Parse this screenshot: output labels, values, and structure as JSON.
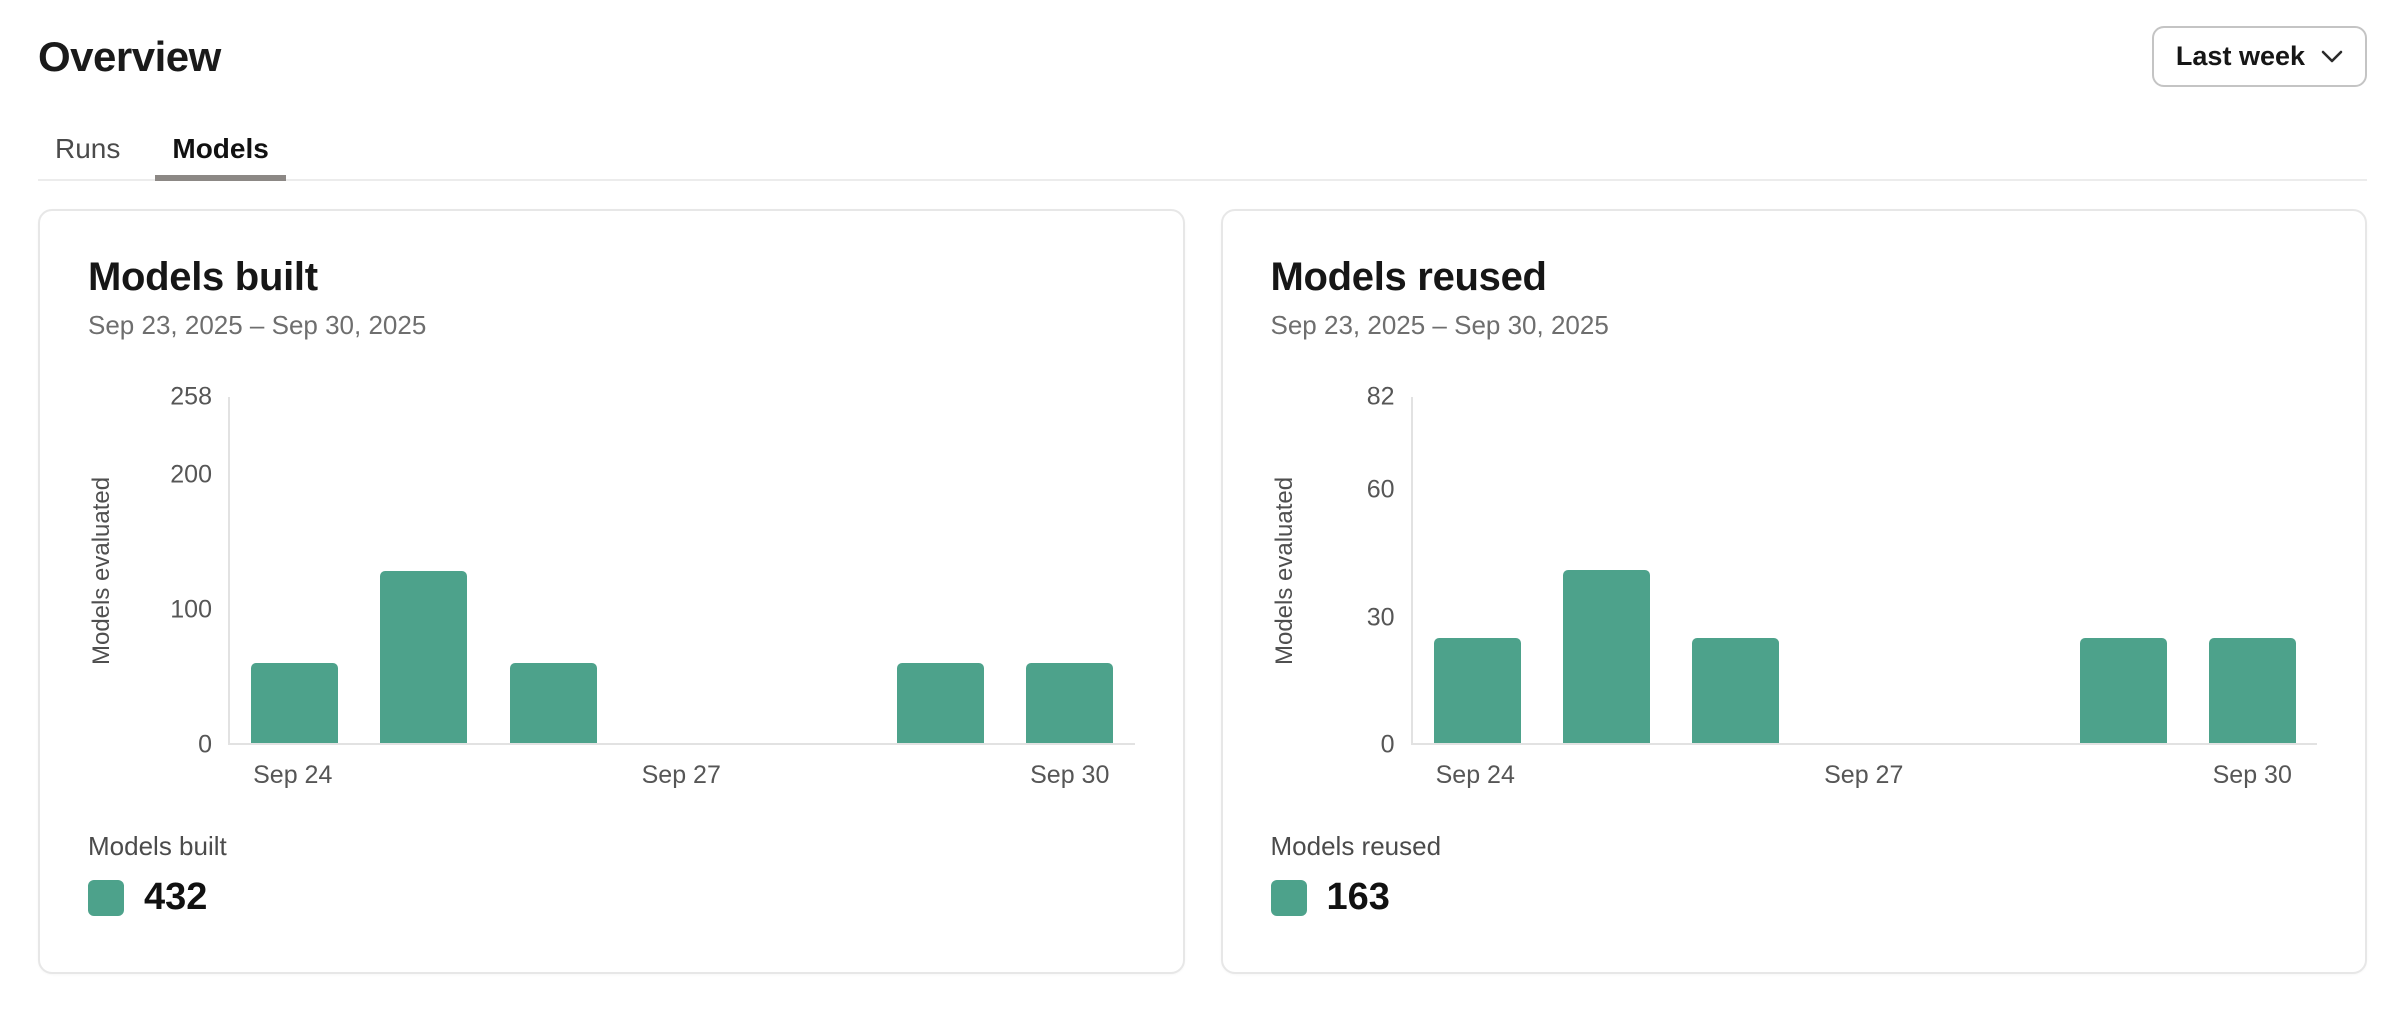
{
  "page": {
    "title": "Overview"
  },
  "header": {
    "period_selector": {
      "label": "Last week",
      "icon": "chevron-down-icon"
    }
  },
  "tabs": [
    {
      "label": "Runs",
      "active": false
    },
    {
      "label": "Models",
      "active": true
    }
  ],
  "colors": {
    "bar_green": "#4da28b",
    "text_primary": "#161616",
    "text_secondary": "#6e6e6e",
    "axis_line": "#e2e2e2",
    "tab_underline": "#8c8885",
    "card_border": "#e7e7e7"
  },
  "chart_data": [
    {
      "type": "bar",
      "title": "Models built",
      "subtitle": "Sep 23, 2025 – Sep 30, 2025",
      "ylabel": "Models evaluated",
      "xlabel": "",
      "categories": [
        "Sep 24",
        "Sep 25",
        "Sep 26",
        "Sep 27",
        "Sep 28",
        "Sep 29",
        "Sep 30"
      ],
      "values": [
        60,
        128,
        60,
        0,
        0,
        60,
        60
      ],
      "y_ticks": [
        0,
        100,
        200,
        258
      ],
      "ylim": [
        0,
        258
      ],
      "x_ticks_shown": [
        "Sep 24",
        "Sep 27",
        "Sep 30"
      ],
      "grid": false,
      "legend": {
        "label": "Models built",
        "total": "432",
        "position": "bottom-left"
      },
      "bar_color": "#4da28b"
    },
    {
      "type": "bar",
      "title": "Models reused",
      "subtitle": "Sep 23, 2025 – Sep 30, 2025",
      "ylabel": "Models evaluated",
      "xlabel": "",
      "categories": [
        "Sep 24",
        "Sep 25",
        "Sep 26",
        "Sep 27",
        "Sep 28",
        "Sep 29",
        "Sep 30"
      ],
      "values": [
        25,
        41,
        25,
        0,
        0,
        25,
        25
      ],
      "y_ticks": [
        0,
        30,
        60,
        82
      ],
      "ylim": [
        0,
        82
      ],
      "x_ticks_shown": [
        "Sep 24",
        "Sep 27",
        "Sep 30"
      ],
      "grid": false,
      "legend": {
        "label": "Models reused",
        "total": "163",
        "position": "bottom-left"
      },
      "bar_color": "#4da28b"
    }
  ]
}
